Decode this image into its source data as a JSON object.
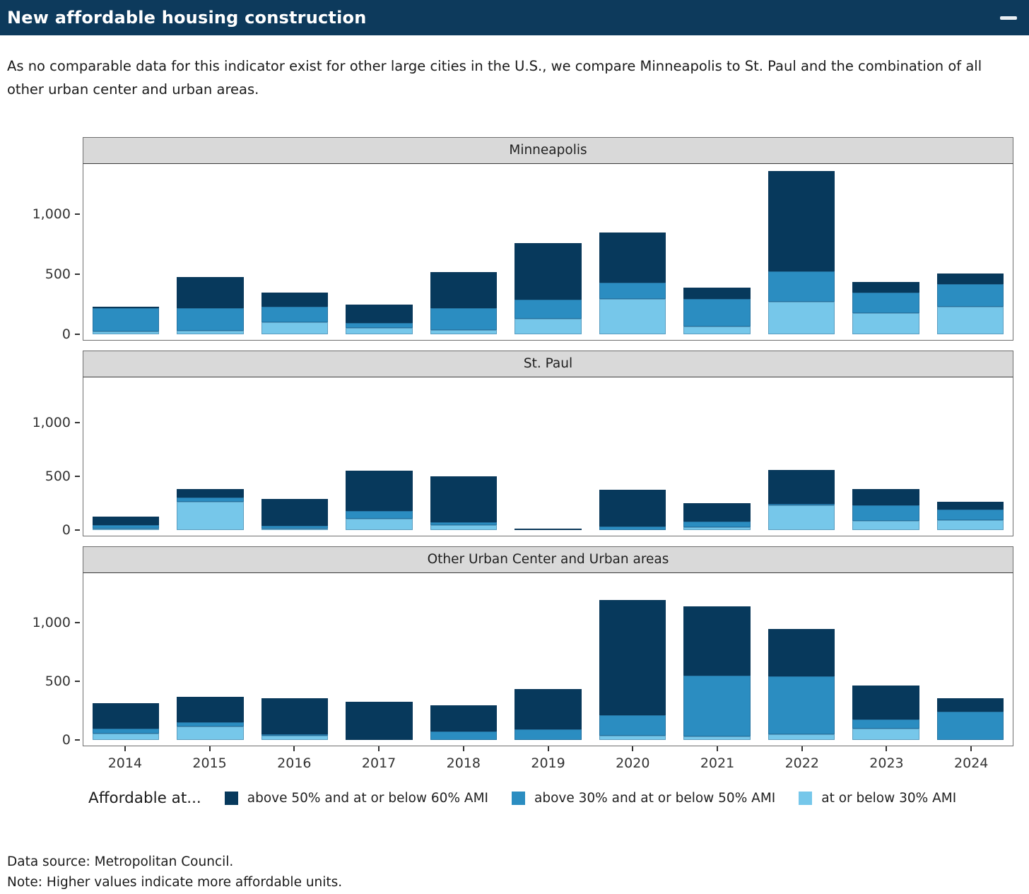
{
  "header": {
    "title": "New affordable housing construction",
    "bg_color": "#0d3a5c"
  },
  "description": "As no comparable data for this indicator exist for other large cities in the U.S., we compare Minneapolis to St. Paul and the combination of all other urban center and urban areas.",
  "chart_data": {
    "type": "bar",
    "stacked": true,
    "grid": false,
    "legend_position": "bottom",
    "legend_title": "Affordable at...",
    "categories": [
      "2014",
      "2015",
      "2016",
      "2017",
      "2018",
      "2019",
      "2020",
      "2021",
      "2022",
      "2023",
      "2024"
    ],
    "yticks": [
      {
        "value": 0,
        "label": "0"
      },
      {
        "value": 500,
        "label": "500"
      },
      {
        "value": 1000,
        "label": "1,000"
      }
    ],
    "ylim": [
      0,
      1430
    ],
    "series_meta": [
      {
        "name": "above 50% and at or below 60% AMI",
        "color": "#07395c"
      },
      {
        "name": "above 30% and at or below 50% AMI",
        "color": "#2b8dc1"
      },
      {
        "name": "at or below 30% AMI",
        "color": "#76c7ea"
      }
    ],
    "facets": [
      {
        "title": "Minneapolis",
        "series": [
          {
            "name": "above 50% and at or below 60% AMI",
            "values": [
              10,
              260,
              115,
              155,
              305,
              475,
              420,
              95,
              840,
              90,
              90
            ]
          },
          {
            "name": "above 30% and at or below 50% AMI",
            "values": [
              195,
              190,
              135,
              40,
              180,
              160,
              135,
              230,
              255,
              170,
              190
            ]
          },
          {
            "name": "at or below 30% AMI",
            "values": [
              20,
              25,
              95,
              50,
              35,
              125,
              295,
              60,
              270,
              175,
              225
            ]
          }
        ]
      },
      {
        "title": "St. Paul",
        "series": [
          {
            "name": "above 50% and at or below 60% AMI",
            "values": [
              75,
              80,
              250,
              375,
              430,
              8,
              340,
              170,
              315,
              150,
              75
            ]
          },
          {
            "name": "above 30% and at or below 50% AMI",
            "values": [
              35,
              40,
              25,
              70,
              25,
              0,
              30,
              50,
              15,
              145,
              95
            ]
          },
          {
            "name": "at or below 30% AMI",
            "values": [
              10,
              260,
              10,
              105,
              45,
              0,
              0,
              25,
              225,
              85,
              90
            ]
          }
        ]
      },
      {
        "title": "Other Urban Center and Urban areas",
        "series": [
          {
            "name": "above 50% and at or below 60% AMI",
            "values": [
              215,
              220,
              310,
              320,
              220,
              340,
              980,
              595,
              405,
              285,
              115
            ]
          },
          {
            "name": "above 30% and at or below 50% AMI",
            "values": [
              45,
              35,
              10,
              0,
              70,
              90,
              175,
              520,
              495,
              80,
              240
            ]
          },
          {
            "name": "at or below 30% AMI",
            "values": [
              50,
              110,
              35,
              0,
              0,
              0,
              35,
              25,
              45,
              95,
              0
            ]
          }
        ]
      }
    ],
    "strip_bg": "#d9d9d9"
  },
  "footer": {
    "source": "Data source: Metropolitan Council.",
    "note": "Note: Higher values indicate more affordable units."
  }
}
